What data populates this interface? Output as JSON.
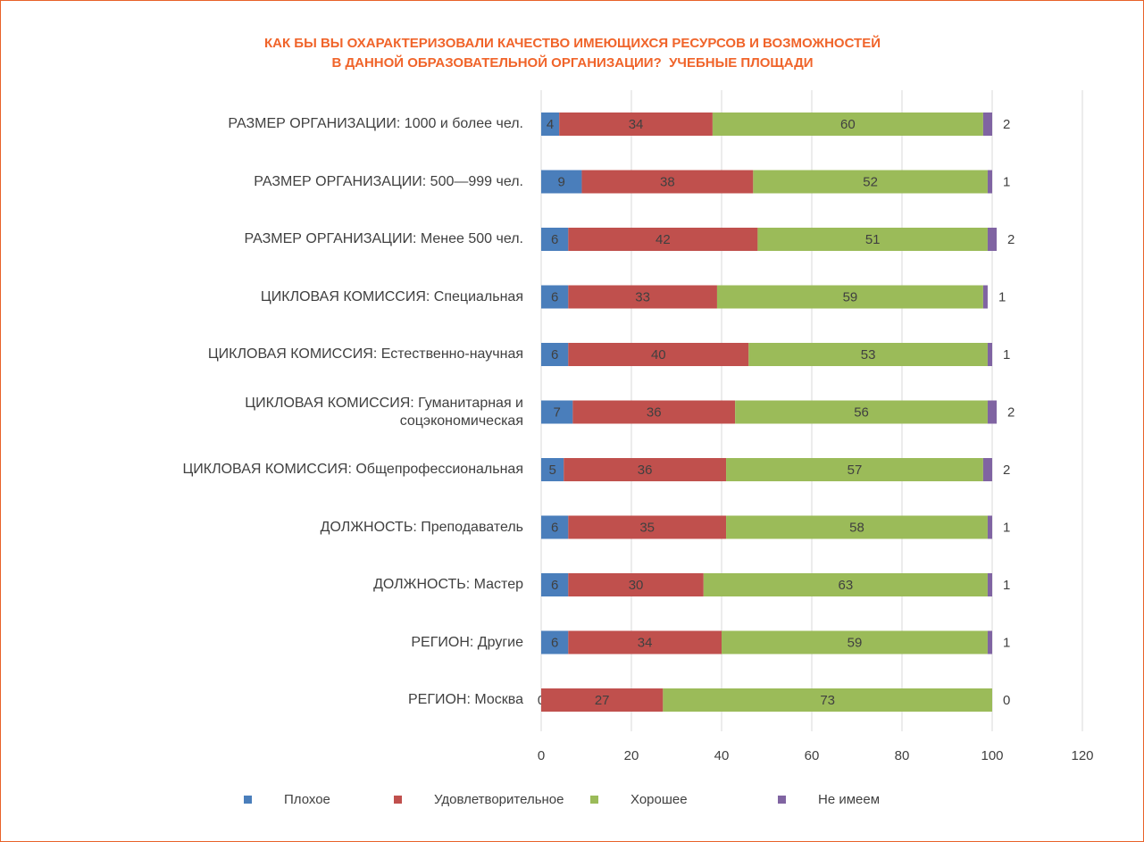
{
  "chart_data": {
    "type": "stacked-bar-horizontal",
    "title": [
      "КАК БЫ ВЫ ОХАРАКТЕРИЗОВАЛИ КАЧЕСТВО ИМЕЮЩИХСЯ РЕСУРСОВ И ВОЗМОЖНОСТЕЙ",
      "В ДАННОЙ ОБРАЗОВАТЕЛЬНОЙ ОРГАНИЗАЦИИ?  УЧЕБНЫЕ ПЛОЩАДИ"
    ],
    "categories": [
      "РАЗМЕР ОРГАНИЗАЦИИ: 1000 и более чел.",
      "РАЗМЕР ОРГАНИЗАЦИИ: 500—999 чел.",
      "РАЗМЕР ОРГАНИЗАЦИИ: Менее 500 чел.",
      "ЦИКЛОВАЯ КОМИССИЯ: Специальная",
      "ЦИКЛОВАЯ КОМИССИЯ: Естественно-научная",
      "ЦИКЛОВАЯ КОМИССИЯ: Гуманитарная и соцэкономическая",
      "ЦИКЛОВАЯ КОМИССИЯ: Общепрофессиональная",
      "ДОЛЖНОСТЬ: Преподаватель",
      "ДОЛЖНОСТЬ: Мастер",
      "РЕГИОН: Другие",
      "РЕГИОН: Москва"
    ],
    "series": [
      {
        "name": "Плохое",
        "color": "#4a7ebb",
        "values": [
          4,
          9,
          6,
          6,
          6,
          7,
          5,
          6,
          6,
          6,
          0
        ]
      },
      {
        "name": "Удовлетворительное",
        "color": "#c0504d",
        "values": [
          34,
          38,
          42,
          33,
          40,
          36,
          36,
          35,
          30,
          34,
          27
        ]
      },
      {
        "name": "Хорошее",
        "color": "#9bbb59",
        "values": [
          60,
          52,
          51,
          59,
          53,
          56,
          57,
          58,
          63,
          59,
          73
        ]
      },
      {
        "name": "Не имеем",
        "color": "#8064a2",
        "values": [
          2,
          1,
          2,
          1,
          1,
          2,
          2,
          1,
          1,
          1,
          0
        ]
      }
    ],
    "xlim": [
      0,
      120
    ],
    "xticks": [
      0,
      20,
      40,
      60,
      80,
      100,
      120
    ],
    "grid": true,
    "legend": "bottom"
  }
}
